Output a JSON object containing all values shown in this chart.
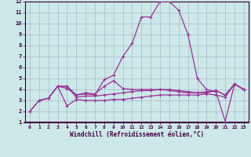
{
  "xlabel": "Windchill (Refroidissement éolien,°C)",
  "background_color": "#cce8e8",
  "grid_color": "#aabbcc",
  "line_color": "#993399",
  "xlim": [
    -0.5,
    23.5
  ],
  "ylim": [
    1,
    12
  ],
  "xticks": [
    0,
    1,
    2,
    3,
    4,
    5,
    6,
    7,
    8,
    9,
    10,
    11,
    12,
    13,
    14,
    15,
    16,
    17,
    18,
    19,
    20,
    21,
    22,
    23
  ],
  "yticks": [
    1,
    2,
    3,
    4,
    5,
    6,
    7,
    8,
    9,
    10,
    11,
    12
  ],
  "line1_x": [
    0,
    1,
    2,
    3,
    4,
    5,
    6,
    7,
    8,
    9,
    10,
    11,
    12,
    13,
    14,
    15,
    16,
    17,
    18,
    19,
    20,
    21,
    22,
    23
  ],
  "line1_y": [
    2.0,
    3.0,
    3.2,
    4.3,
    4.1,
    3.5,
    3.6,
    3.5,
    4.9,
    5.3,
    7.0,
    8.2,
    10.6,
    10.6,
    12.0,
    12.0,
    11.2,
    9.0,
    5.0,
    4.0,
    3.8,
    1.1,
    4.5,
    4.0
  ],
  "line2_x": [
    0,
    1,
    2,
    3,
    4,
    5,
    6,
    7,
    8,
    9,
    10,
    11,
    12,
    13,
    14,
    15,
    16,
    17,
    18,
    19,
    20,
    21,
    22,
    23
  ],
  "line2_y": [
    2.0,
    3.0,
    3.2,
    4.3,
    4.3,
    3.5,
    3.7,
    3.6,
    4.3,
    4.8,
    4.1,
    4.0,
    4.0,
    4.0,
    4.0,
    4.0,
    3.9,
    3.8,
    3.7,
    3.7,
    3.9,
    3.5,
    4.5,
    4.0
  ],
  "line3_x": [
    1,
    2,
    3,
    4,
    5,
    6,
    7,
    8,
    9,
    10,
    11,
    12,
    13,
    14,
    15,
    16,
    17,
    18,
    19,
    20,
    21,
    22,
    23
  ],
  "line3_y": [
    3.0,
    3.2,
    4.3,
    2.5,
    3.1,
    3.0,
    3.0,
    3.0,
    3.1,
    3.1,
    3.2,
    3.3,
    3.4,
    3.5,
    3.5,
    3.5,
    3.5,
    3.5,
    3.6,
    3.5,
    3.3,
    4.5,
    4.0
  ],
  "line4_x": [
    3,
    4,
    5,
    6,
    7,
    8,
    9,
    10,
    11,
    12,
    13,
    14,
    15,
    16,
    17,
    18,
    19,
    20,
    21,
    22,
    23
  ],
  "line4_y": [
    4.3,
    4.3,
    3.3,
    3.4,
    3.4,
    3.5,
    3.6,
    3.7,
    3.8,
    3.9,
    3.9,
    4.0,
    3.9,
    3.8,
    3.7,
    3.7,
    3.8,
    3.9,
    3.5,
    4.5,
    4.0
  ]
}
